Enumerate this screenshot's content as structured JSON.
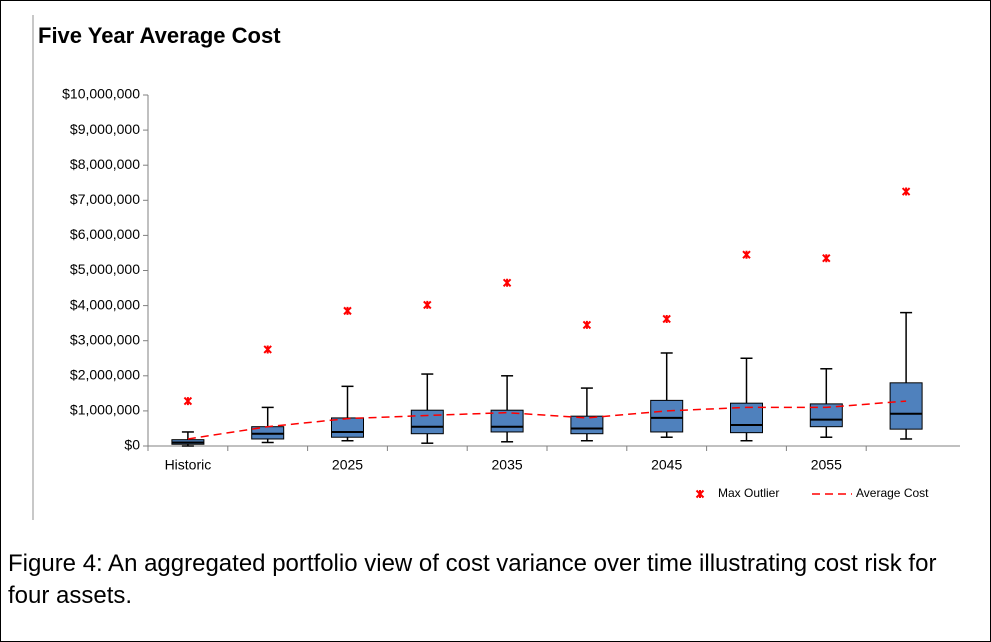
{
  "chart_data": {
    "type": "box",
    "title": "Five Year Average Cost",
    "categories": [
      "Historic",
      null,
      "2025",
      null,
      "2035",
      null,
      "2045",
      null,
      "2055",
      null
    ],
    "boxes": [
      {
        "min": 0,
        "q1": 50000,
        "median": 100000,
        "q3": 180000,
        "max": 400000
      },
      {
        "min": 100000,
        "q1": 200000,
        "median": 350000,
        "q3": 550000,
        "max": 1100000
      },
      {
        "min": 150000,
        "q1": 250000,
        "median": 400000,
        "q3": 800000,
        "max": 1700000
      },
      {
        "min": 80000,
        "q1": 350000,
        "median": 550000,
        "q3": 1020000,
        "max": 2050000
      },
      {
        "min": 120000,
        "q1": 400000,
        "median": 550000,
        "q3": 1020000,
        "max": 2000000
      },
      {
        "min": 150000,
        "q1": 350000,
        "median": 500000,
        "q3": 850000,
        "max": 1650000
      },
      {
        "min": 250000,
        "q1": 400000,
        "median": 800000,
        "q3": 1300000,
        "max": 2650000
      },
      {
        "min": 150000,
        "q1": 380000,
        "median": 600000,
        "q3": 1220000,
        "max": 2500000
      },
      {
        "min": 250000,
        "q1": 550000,
        "median": 750000,
        "q3": 1200000,
        "max": 2200000
      },
      {
        "min": 200000,
        "q1": 480000,
        "median": 920000,
        "q3": 1800000,
        "max": 3800000
      }
    ],
    "box_color": "#4f81bd",
    "series": [
      {
        "name": "Max Outlier",
        "color": "#ff0000",
        "values": [
          1280000,
          2750000,
          3850000,
          4020000,
          4650000,
          3450000,
          3620000,
          5450000,
          5350000,
          7250000
        ]
      },
      {
        "name": "Average Cost",
        "color": "#ff0000",
        "values": [
          200000,
          550000,
          780000,
          870000,
          950000,
          800000,
          1000000,
          1100000,
          1100000,
          1280000
        ]
      }
    ],
    "ylim": [
      0,
      10000000
    ],
    "yticks": [
      {
        "value": 0,
        "label": "$0"
      },
      {
        "value": 1000000,
        "label": "$1,000,000"
      },
      {
        "value": 2000000,
        "label": "$2,000,000"
      },
      {
        "value": 3000000,
        "label": "$3,000,000"
      },
      {
        "value": 4000000,
        "label": "$4,000,000"
      },
      {
        "value": 5000000,
        "label": "$5,000,000"
      },
      {
        "value": 6000000,
        "label": "$6,000,000"
      },
      {
        "value": 7000000,
        "label": "$7,000,000"
      },
      {
        "value": 8000000,
        "label": "$8,000,000"
      },
      {
        "value": 9000000,
        "label": "$9,000,000"
      },
      {
        "value": 10000000,
        "label": "$10,000,000"
      }
    ],
    "grid": false
  },
  "caption": "Figure 4: An aggregated portfolio view of cost variance over time illustrating cost risk for four assets."
}
